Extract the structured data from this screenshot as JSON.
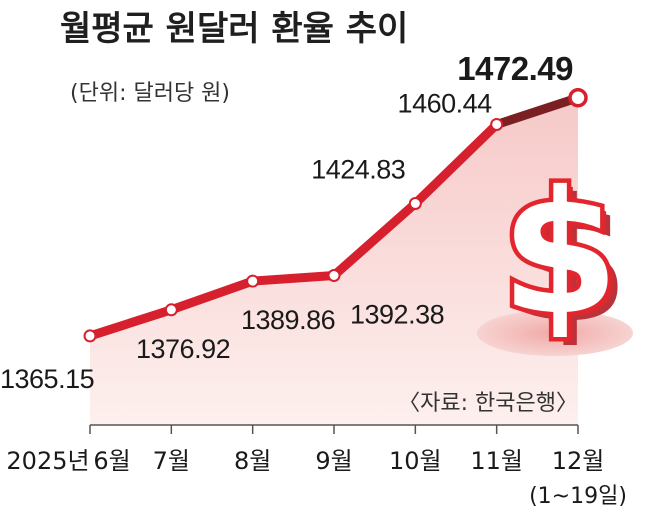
{
  "chart_data": {
    "type": "line",
    "title": "월평균 원달러 환율 추이",
    "unit_note": "(단위: 달러당 원)",
    "source": "〈자료: 한국은행〉",
    "categories": [
      "6월",
      "7월",
      "8월",
      "9월",
      "10월",
      "11월",
      "12월"
    ],
    "x_prefix": "2025년",
    "x_sublabel": "(1~19일)",
    "series": [
      {
        "values": [
          1365.15,
          1376.92,
          1389.86,
          1392.38,
          1424.83,
          1460.44,
          1472.49
        ],
        "labels": [
          "1365.15",
          "1376.92",
          "1389.86",
          "1392.38",
          "1424.83",
          "1460.44",
          "1472.49"
        ]
      }
    ],
    "ylim": [
      1325,
      1485
    ],
    "grid": false,
    "colors": {
      "line": "#d7202e",
      "last_segment": "#7a1f22",
      "fill": "#f7d4d2",
      "marker_stroke": "#d7202e",
      "marker_fill": "#ffffff",
      "dollar": "#e3262e"
    }
  },
  "decoration": {
    "icon": "dollar-sign-icon"
  }
}
